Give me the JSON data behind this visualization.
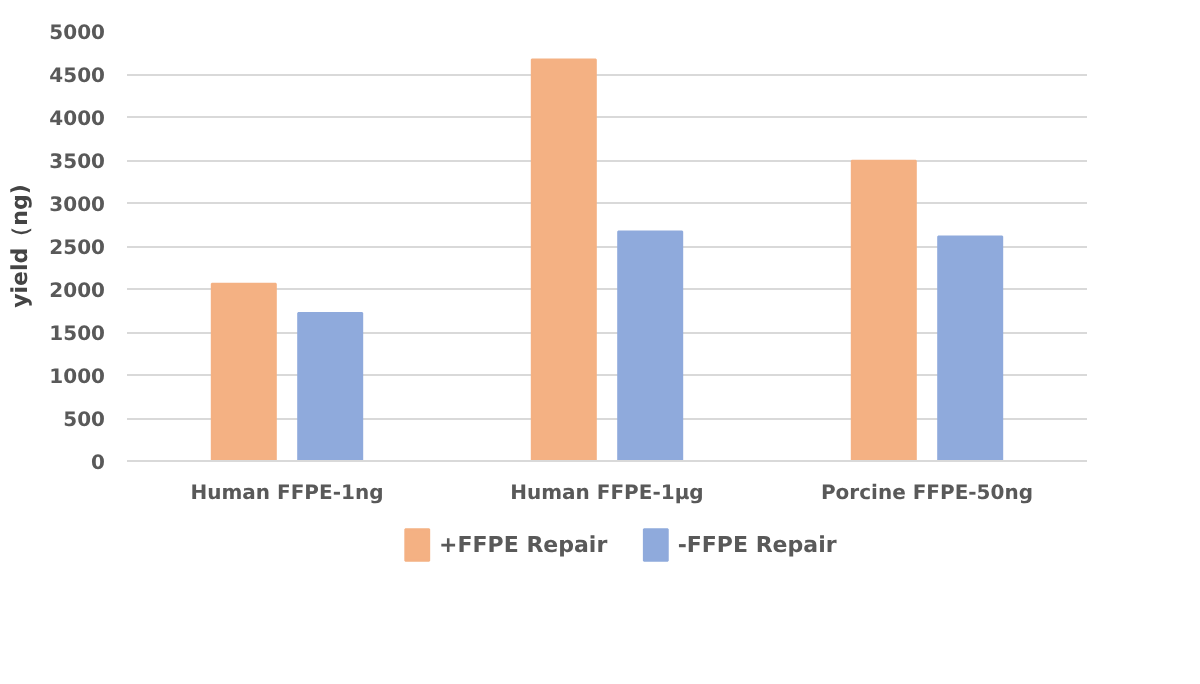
{
  "chart_data": {
    "type": "bar",
    "ylabel": "yield（ng)",
    "categories": [
      "Human FFPE-1ng",
      "Human FFPE-1μg",
      "Porcine FFPE-50ng"
    ],
    "series": [
      {
        "name": "+FFPE Repair",
        "color": "#f4b183",
        "values": [
          2060,
          4670,
          3490
        ]
      },
      {
        "name": "-FFPE Repair",
        "color": "#8faadc",
        "values": [
          1720,
          2670,
          2610
        ]
      }
    ],
    "ylim": [
      0,
      5000
    ],
    "yticks": [
      0,
      500,
      1000,
      1500,
      2000,
      2500,
      3000,
      3500,
      4000,
      4500,
      5000
    ],
    "grid": "y",
    "legend": "bottom"
  }
}
